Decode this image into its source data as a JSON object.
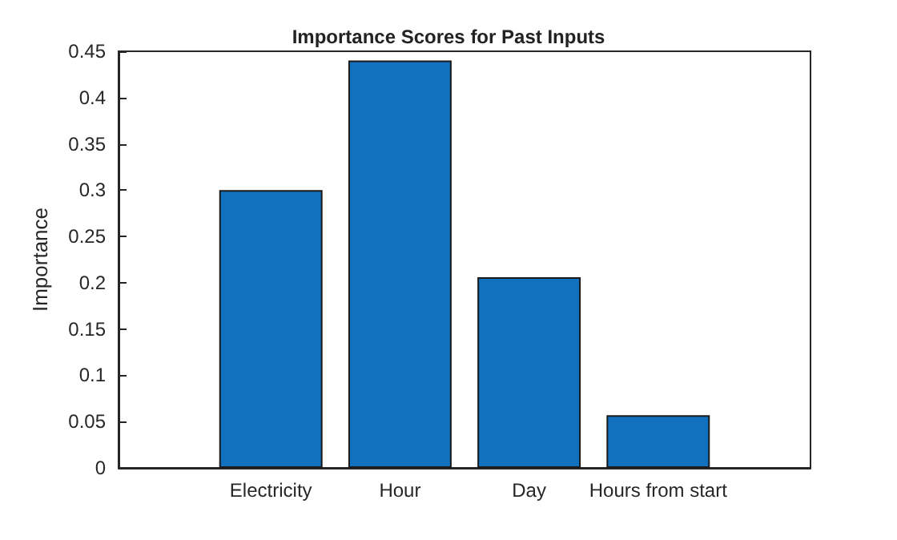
{
  "chart_data": {
    "type": "bar",
    "title": "Importance Scores for Past Inputs",
    "ylabel": "Importance",
    "categories": [
      "Electricity",
      "Hour",
      "Day",
      "Hours from start"
    ],
    "values": [
      0.3,
      0.44,
      0.206,
      0.057
    ],
    "color": "#1171be",
    "ylim": [
      0,
      0.45
    ],
    "yticks": [
      0,
      0.05,
      0.1,
      0.15,
      0.2,
      0.25,
      0.3,
      0.35,
      0.4,
      0.45
    ],
    "grid": false
  }
}
